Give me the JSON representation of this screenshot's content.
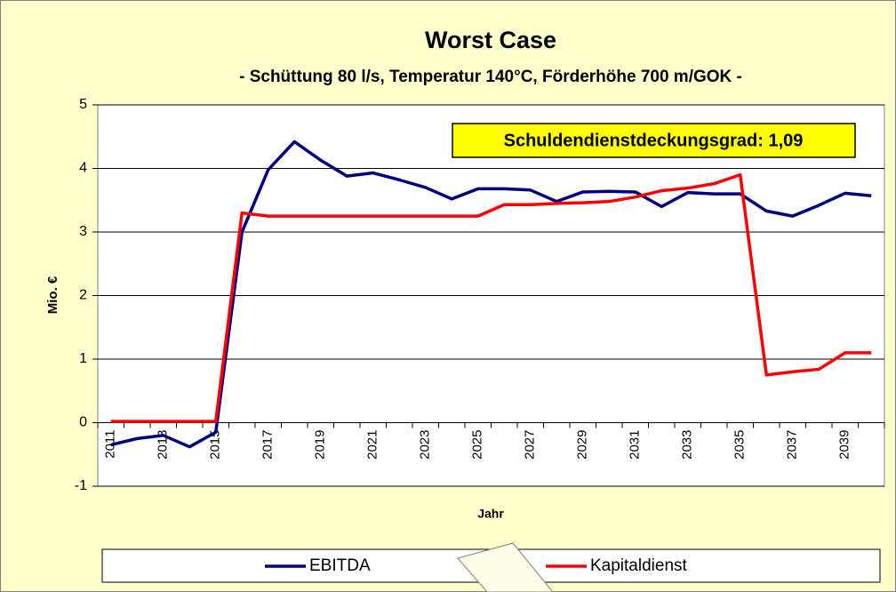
{
  "chart_data": {
    "type": "line",
    "title": "Worst Case",
    "subtitle": "- Schüttung 80 l/s, Temperatur 140°C, Förderhöhe 700 m/GOK -",
    "y_label": "Mio. €",
    "x_label": "Jahr",
    "annotation": "Schuldendienstdeckungsgrad: 1,09",
    "categories": [
      "2011",
      null,
      "2013",
      null,
      "2015",
      null,
      "2017",
      null,
      "2019",
      null,
      "2021",
      null,
      "2023",
      null,
      "2025",
      null,
      "2027",
      null,
      "2029",
      null,
      "2031",
      null,
      "2033",
      null,
      "2035",
      null,
      "2037",
      null,
      "2039",
      null
    ],
    "series": [
      {
        "name": "EBITDA",
        "color": "#000080",
        "values": [
          -0.35,
          -0.25,
          -0.2,
          -0.38,
          -0.15,
          3.0,
          3.98,
          4.42,
          4.13,
          3.88,
          3.93,
          3.82,
          3.7,
          3.52,
          3.68,
          3.68,
          3.66,
          3.48,
          3.63,
          3.64,
          3.63,
          3.4,
          3.62,
          3.6,
          3.6,
          3.33,
          3.25,
          3.42,
          3.61,
          3.57
        ]
      },
      {
        "name": "Kapitaldienst",
        "color": "#ff0000",
        "values": [
          0.02,
          0.02,
          0.02,
          0.02,
          0.02,
          3.3,
          3.25,
          3.25,
          3.25,
          3.25,
          3.25,
          3.25,
          3.25,
          3.25,
          3.25,
          3.43,
          3.43,
          3.45,
          3.46,
          3.48,
          3.55,
          3.65,
          3.69,
          3.76,
          3.9,
          0.75,
          0.8,
          0.84,
          1.1,
          1.1
        ]
      }
    ],
    "ylim": [
      -1,
      5
    ],
    "yticks": [
      -1,
      0,
      1,
      2,
      3,
      4,
      5
    ],
    "grid": true,
    "legend": "bottom"
  }
}
